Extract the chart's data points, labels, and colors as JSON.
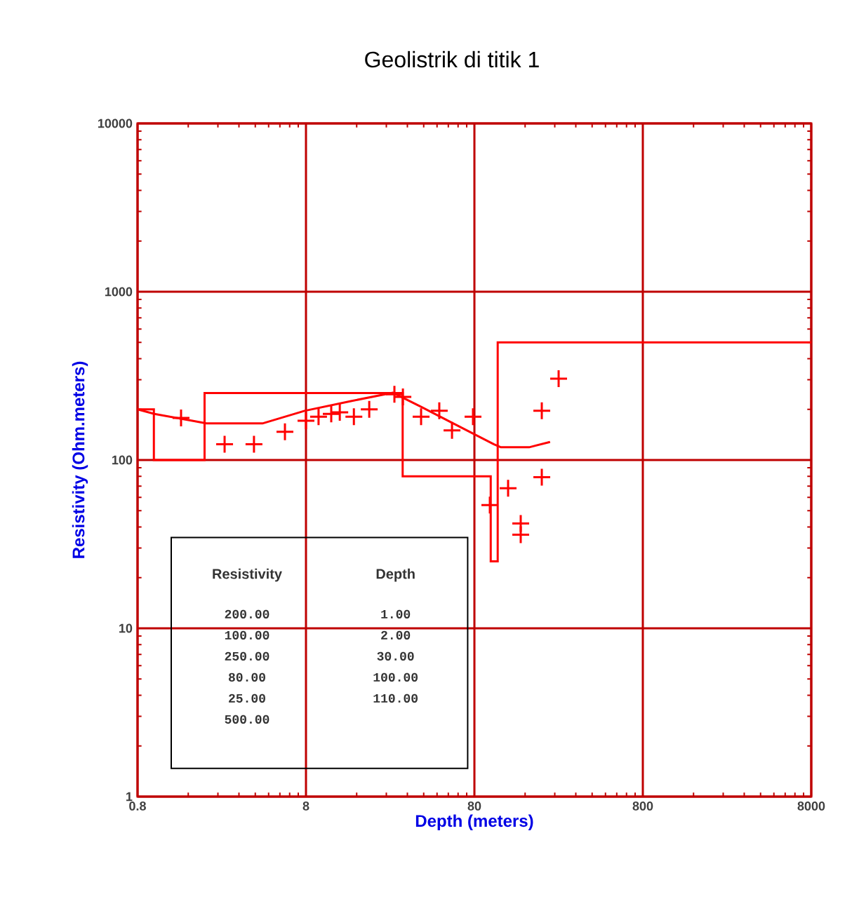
{
  "chart_data": {
    "type": "scatter",
    "title": "Geolistrik di titik 1",
    "xlabel": "Depth (meters)",
    "ylabel": "Resistivity (Ohm.meters)",
    "log": "xy",
    "xlim": [
      0.8,
      8000
    ],
    "ylim": [
      1,
      10000
    ],
    "xticks": [
      0.8,
      8,
      80,
      800,
      8000
    ],
    "yticks": [
      1,
      10,
      100,
      1000,
      10000
    ],
    "grid": true,
    "series": [
      {
        "marker": "cross",
        "color": "#ff0000",
        "x": [
          1.45,
          2.63,
          3.93,
          6.0,
          8.0,
          9.5,
          11.3,
          12.7,
          15.4,
          19.0,
          26.8,
          30.1,
          38.6,
          49.5,
          58.9,
          78.5,
          98.8,
          126.8,
          150.7,
          150.7,
          201,
          201,
          253
        ],
        "values": [
          178,
          124,
          124,
          147,
          171,
          181,
          188,
          192,
          181,
          200,
          246,
          237,
          181,
          196,
          150,
          181,
          54,
          68,
          42,
          36,
          79,
          196,
          304
        ]
      },
      {
        "type": "line",
        "color": "#ff0000",
        "x": [
          0.8,
          1.007,
          1.69,
          2.05,
          4.41,
          7.85,
          14.8,
          26.3,
          38.6,
          60,
          104.6,
          115,
          169,
          225
        ],
        "values": [
          200,
          188,
          171,
          165,
          165,
          196,
          224,
          251,
          207,
          165,
          124,
          119,
          119,
          128
        ]
      },
      {
        "type": "step",
        "color": "#ff0000",
        "x": [
          0.8,
          1,
          2,
          30,
          100,
          110,
          8000
        ],
        "values": [
          200,
          100,
          250,
          80,
          25,
          500,
          500
        ]
      }
    ],
    "annotations": [
      "Resistivity",
      "Depth",
      "200.00",
      "1.00",
      "100.00",
      "2.00",
      "250.00",
      "30.00",
      "80.00",
      "100.00",
      "25.00",
      "110.00",
      "500.00"
    ]
  }
}
